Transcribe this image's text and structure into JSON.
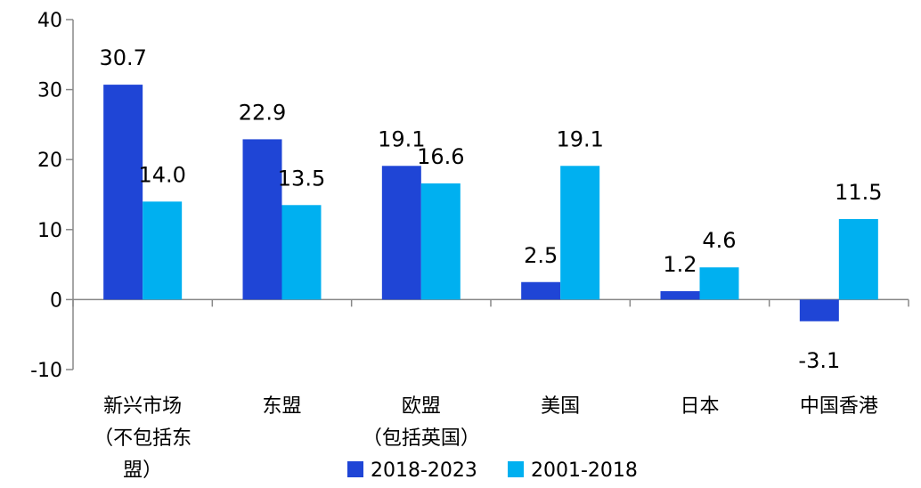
{
  "chart_data": {
    "type": "bar",
    "categories": [
      [
        "新兴市场",
        "（不包括东",
        "盟）"
      ],
      [
        "东盟"
      ],
      [
        "欧盟",
        "（包括英国）"
      ],
      [
        "美国"
      ],
      [
        "日本"
      ],
      [
        "中国香港"
      ]
    ],
    "series": [
      {
        "name": "2018-2023",
        "color": "#1f45d6",
        "values": [
          30.7,
          22.9,
          19.1,
          2.5,
          1.2,
          -3.1
        ]
      },
      {
        "name": "2001-2018",
        "color": "#00b0f0",
        "values": [
          14.0,
          13.5,
          16.6,
          19.1,
          4.6,
          11.5
        ]
      }
    ],
    "ylim": [
      -10,
      40
    ],
    "yticks": [
      40,
      30,
      20,
      10,
      0,
      -10
    ],
    "grid": false,
    "legend_position": "bottom-center"
  }
}
